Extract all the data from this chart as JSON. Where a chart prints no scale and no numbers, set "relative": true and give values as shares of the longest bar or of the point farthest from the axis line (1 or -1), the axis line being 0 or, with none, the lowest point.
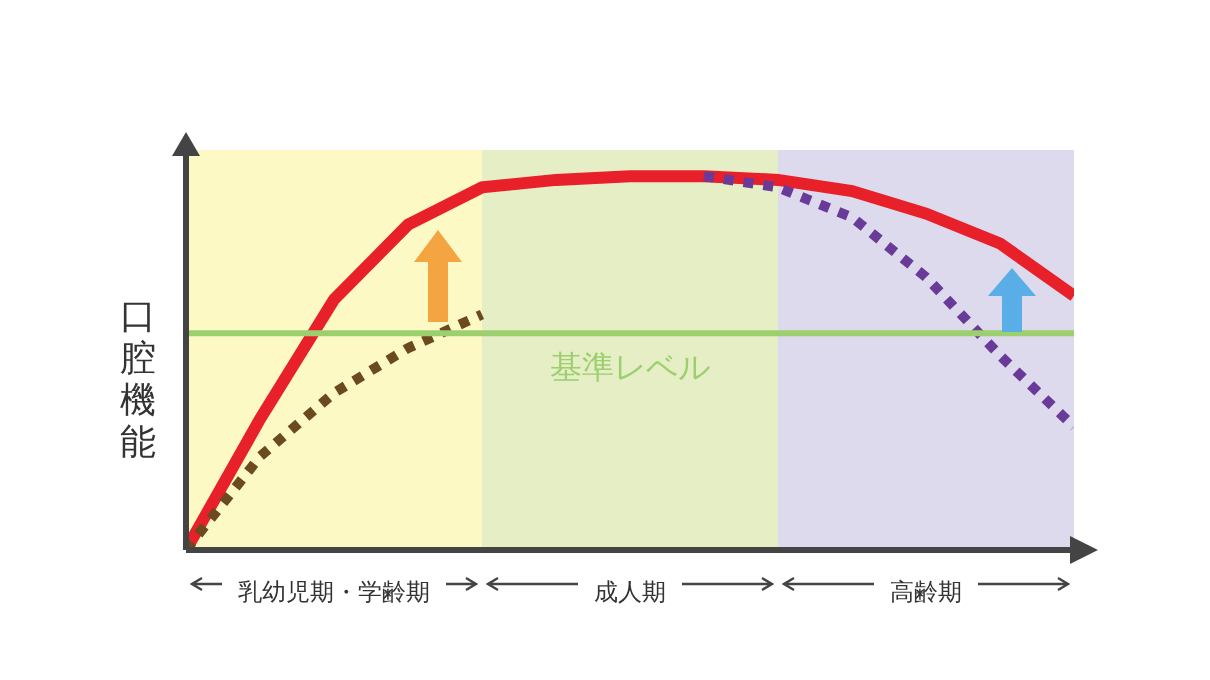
{
  "chart_data": {
    "type": "line",
    "relative": true,
    "ylabel": "口腔機能",
    "categories": [
      null,
      null,
      null,
      null,
      null,
      null,
      null,
      null,
      null,
      null,
      null,
      null,
      null
    ],
    "marker": "none",
    "series": [
      {
        "color": "#e8202a",
        "line_style": "solid",
        "values": [
          0,
          0.35,
          0.67,
          0.87,
          0.97,
          0.99,
          1.0,
          1.0,
          0.99,
          0.96,
          0.9,
          0.82,
          0.68
        ]
      },
      {
        "color": "#6b4a1e",
        "line_style": "dotted",
        "values": [
          0,
          0.25,
          0.42,
          0.54,
          0.63,
          null,
          null,
          null,
          null,
          null,
          null,
          null,
          null
        ]
      },
      {
        "color": "#6a3a98",
        "line_style": "dotted",
        "values": [
          null,
          null,
          null,
          null,
          null,
          null,
          null,
          1.0,
          0.97,
          0.89,
          0.73,
          0.52,
          0.33
        ]
      }
    ],
    "ref_lines": [
      {
        "axis": "y",
        "value": 0.58,
        "label": "基準レベル",
        "color": "#9ccf6e"
      }
    ],
    "annotations": [
      "乳幼児期・学齢期",
      "成人期",
      "高齢期"
    ]
  }
}
